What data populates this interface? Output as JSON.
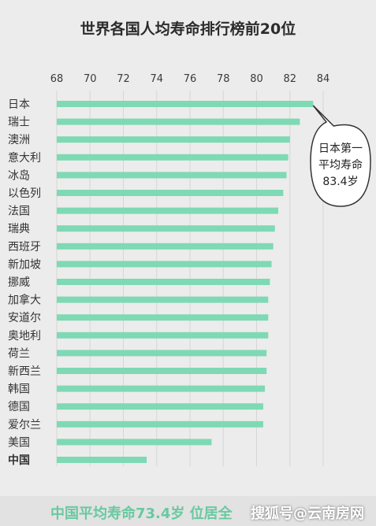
{
  "chart_data": {
    "type": "bar",
    "orientation": "horizontal",
    "title": "世界各国人均寿命排行榜前20位",
    "categories": [
      "日本",
      "瑞士",
      "澳洲",
      "意大利",
      "冰岛",
      "以色列",
      "法国",
      "瑞典",
      "西班牙",
      "新加坡",
      "挪威",
      "加拿大",
      "安道尔",
      "奥地利",
      "荷兰",
      "新西兰",
      "韩国",
      "德国",
      "爱尔兰",
      "美国",
      "中国"
    ],
    "values": [
      83.4,
      82.6,
      82.0,
      81.9,
      81.8,
      81.6,
      81.3,
      81.1,
      81.0,
      80.9,
      80.8,
      80.7,
      80.7,
      80.7,
      80.6,
      80.6,
      80.5,
      80.4,
      80.4,
      77.3,
      73.4
    ],
    "xlim": [
      68,
      84
    ],
    "xticks": [
      "68",
      "70",
      "72",
      "74",
      "76",
      "78",
      "80",
      "82",
      "84"
    ],
    "bar_color": "#7ed9b5",
    "highlight_category": "中国",
    "annotation": {
      "target": "日本",
      "lines": [
        "日本第一",
        "平均寿命",
        "83.4岁"
      ]
    }
  },
  "footer": {
    "text": "中国平均寿命73.4岁  位居全",
    "watermark": "搜狐号@云南房网"
  },
  "colors": {
    "background": "#ececec",
    "grid": "#d6d6d6",
    "text": "#3a3a3a"
  }
}
